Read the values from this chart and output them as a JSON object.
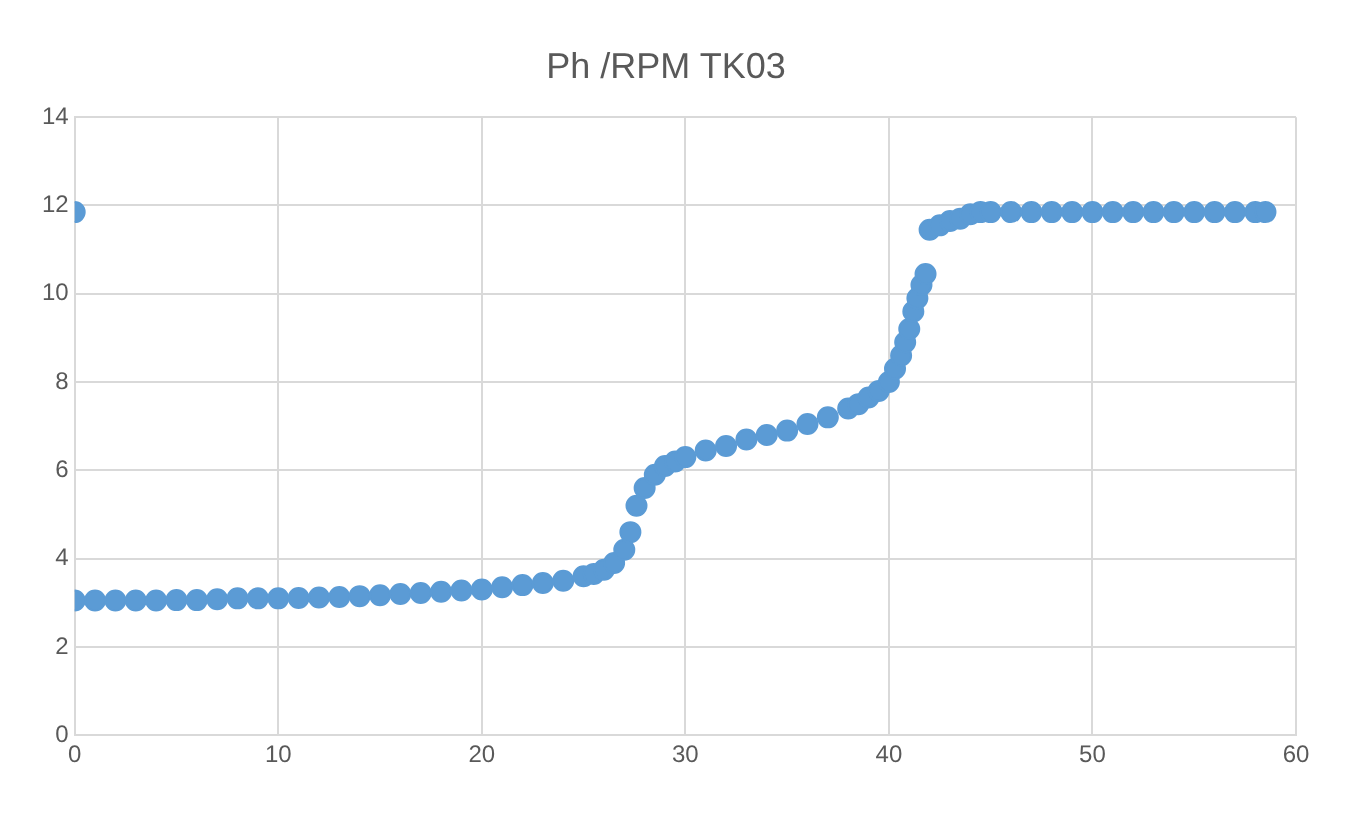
{
  "chart_data": {
    "type": "scatter",
    "title": "Ph /RPM TK03",
    "xlim": [
      0,
      60
    ],
    "xticks": [
      0,
      10,
      20,
      30,
      40,
      50,
      60
    ],
    "ylim": [
      0,
      14
    ],
    "yticks": [
      0,
      2,
      4,
      6,
      8,
      10,
      12,
      14
    ],
    "grid": true,
    "legend": false,
    "marker": "circle",
    "series": [
      {
        "color": "#5b9bd5",
        "x": [
          0,
          0,
          1,
          2,
          3,
          4,
          5,
          6,
          7,
          8,
          9,
          10,
          11,
          12,
          13,
          14,
          15,
          16,
          17,
          18,
          19,
          20,
          21,
          22,
          23,
          24,
          25,
          25.5,
          26,
          26.5,
          27,
          27.3,
          27.6,
          28,
          28.5,
          29,
          29.5,
          30,
          31,
          32,
          33,
          34,
          35,
          36,
          37,
          38,
          38.5,
          39,
          39.5,
          40,
          40.3,
          40.6,
          40.8,
          41,
          41.2,
          41.4,
          41.6,
          41.8,
          42,
          42.5,
          43,
          43.5,
          44,
          44.5,
          45,
          46,
          47,
          48,
          49,
          50,
          51,
          52,
          53,
          54,
          55,
          56,
          57,
          58,
          58.5
        ],
        "values": [
          11.85,
          3.05,
          3.05,
          3.05,
          3.05,
          3.05,
          3.06,
          3.06,
          3.08,
          3.1,
          3.1,
          3.1,
          3.11,
          3.12,
          3.13,
          3.15,
          3.17,
          3.2,
          3.22,
          3.25,
          3.28,
          3.3,
          3.35,
          3.4,
          3.45,
          3.5,
          3.6,
          3.65,
          3.75,
          3.9,
          4.2,
          4.6,
          5.2,
          5.6,
          5.9,
          6.1,
          6.2,
          6.3,
          6.45,
          6.55,
          6.7,
          6.8,
          6.9,
          7.05,
          7.2,
          7.4,
          7.5,
          7.65,
          7.8,
          8.0,
          8.3,
          8.6,
          8.9,
          9.2,
          9.6,
          9.9,
          10.2,
          10.45,
          11.45,
          11.55,
          11.65,
          11.7,
          11.8,
          11.85,
          11.85,
          11.85,
          11.85,
          11.85,
          11.85,
          11.85,
          11.85,
          11.85,
          11.85,
          11.85,
          11.85,
          11.85,
          11.85,
          11.85,
          11.85
        ]
      }
    ]
  }
}
